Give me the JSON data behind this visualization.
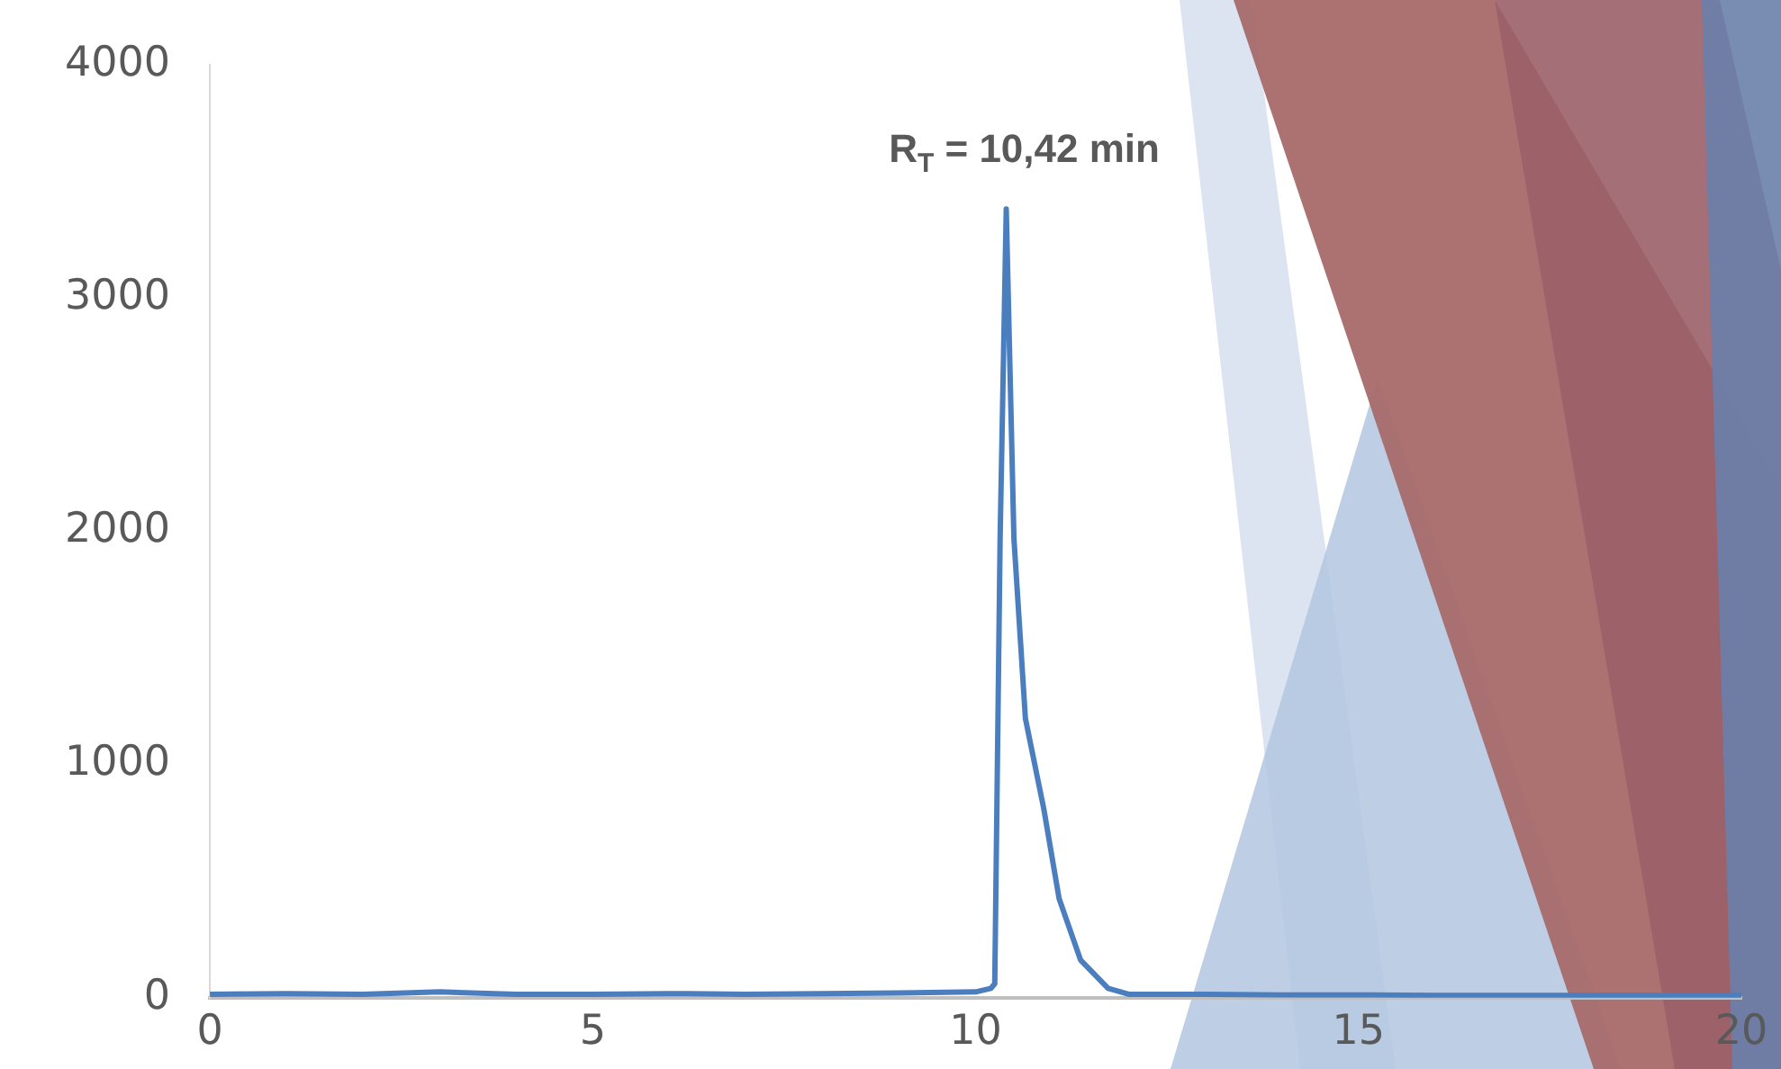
{
  "chart_data": {
    "type": "line",
    "x": [
      0,
      1,
      2,
      3,
      4,
      5,
      6,
      7,
      8,
      9,
      10,
      10.2,
      10.25,
      10.32,
      10.4,
      10.5,
      10.65,
      10.89,
      11.09,
      11.37,
      11.73,
      12,
      13,
      14,
      15,
      16,
      17,
      18,
      19,
      20
    ],
    "series": [
      {
        "color": "#4a7ebf",
        "values": [
          15,
          18,
          15,
          25,
          15,
          15,
          18,
          15,
          18,
          20,
          25,
          40,
          60,
          1970,
          3380,
          1970,
          1197,
          810,
          425,
          162,
          40,
          15,
          15,
          12,
          12,
          10,
          10,
          10,
          10,
          10
        ]
      }
    ],
    "xlim": [
      0,
      20
    ],
    "xticks": [
      0,
      5,
      10,
      15,
      20
    ],
    "ylim": [
      0,
      4000
    ],
    "yticks": [
      0,
      1000,
      2000,
      3000,
      4000
    ],
    "grid": false,
    "legend": false,
    "marker": "none",
    "line_style": "solid",
    "annotations": [
      "R$_{T}$ = 10,42 min"
    ]
  }
}
